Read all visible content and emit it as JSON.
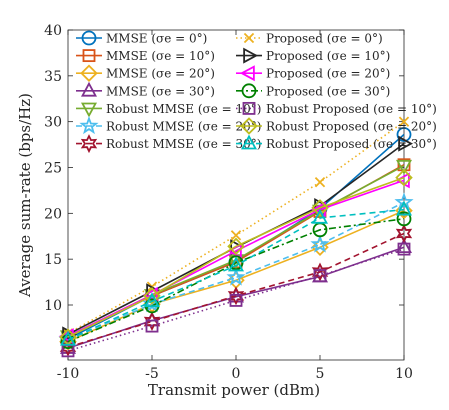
{
  "chart_data": {
    "type": "line",
    "title": "",
    "xlabel": "Transmit power (dBm)",
    "ylabel": "Average sum-rate (bps/Hz)",
    "x": [
      -10,
      -5,
      0,
      5,
      10
    ],
    "xlim": [
      -10,
      10
    ],
    "ylim": [
      4,
      40
    ],
    "xticks": [
      -10,
      -5,
      0,
      5,
      10
    ],
    "yticks": [
      10,
      15,
      20,
      25,
      30,
      35,
      40
    ],
    "grid": false,
    "legend_position": "top-left, two columns",
    "series": [
      {
        "name": "MMSE (σe = 0°)",
        "color": "#0072BD",
        "linestyle": "solid",
        "marker": "circle",
        "values": [
          6.3,
          11.0,
          14.7,
          20.5,
          28.6
        ]
      },
      {
        "name": "MMSE (σe = 10°)",
        "color": "#D95319",
        "linestyle": "solid",
        "marker": "square",
        "values": [
          6.5,
          11.0,
          14.7,
          20.2,
          25.3
        ]
      },
      {
        "name": "MMSE (σe = 20°)",
        "color": "#EDB120",
        "linestyle": "solid",
        "marker": "diamond",
        "values": [
          6.0,
          10.1,
          12.7,
          16.3,
          20.3
        ]
      },
      {
        "name": "MMSE (σe = 30°)",
        "color": "#7E2F8E",
        "linestyle": "solid",
        "marker": "triangle-up",
        "values": [
          5.3,
          8.3,
          10.9,
          13.1,
          16.3
        ]
      },
      {
        "name": "Robust MMSE (σe = 10°)",
        "color": "#77AC30",
        "linestyle": "solid",
        "marker": "triangle-down",
        "values": [
          6.6,
          11.1,
          14.9,
          20.3,
          25.2
        ]
      },
      {
        "name": "Robust MMSE (σe = 20°)",
        "color": "#4DBEEE",
        "linestyle": "dashed",
        "marker": "pentagram",
        "values": [
          6.2,
          10.1,
          13.0,
          16.6,
          21.2
        ]
      },
      {
        "name": "Robust MMSE (σe = 30°)",
        "color": "#A2142F",
        "linestyle": "dashed",
        "marker": "hexagram",
        "values": [
          5.4,
          8.2,
          11.0,
          13.6,
          17.8
        ]
      },
      {
        "name": "Proposed (σe = 0°)",
        "color": "#EDB120",
        "linestyle": "dotted",
        "marker": "x",
        "values": [
          6.9,
          12.0,
          17.6,
          23.4,
          30.0
        ]
      },
      {
        "name": "Proposed (σe = 10°)",
        "color": "#262626",
        "linestyle": "solid",
        "marker": "triangle-right",
        "values": [
          6.8,
          11.5,
          16.3,
          20.8,
          27.6
        ]
      },
      {
        "name": "Proposed (σe = 20°)",
        "color": "#FF00FF",
        "linestyle": "solid",
        "marker": "triangle-left",
        "values": [
          6.6,
          11.1,
          15.9,
          20.4,
          23.6
        ]
      },
      {
        "name": "Proposed (σe = 30°)",
        "color": "#008000",
        "linestyle": "dashdot",
        "marker": "circle",
        "values": [
          6.0,
          9.9,
          14.6,
          18.2,
          19.4
        ]
      },
      {
        "name": "Robust Proposed (σe = 10°)",
        "color": "#7E2F8E",
        "linestyle": "dotted",
        "marker": "square",
        "values": [
          5.0,
          7.7,
          10.5,
          13.2,
          16.1
        ]
      },
      {
        "name": "Robust Proposed (σe = 20°)",
        "color": "#BDBD1E",
        "linestyle": "solid",
        "marker": "diamond",
        "values": [
          6.5,
          11.0,
          16.4,
          20.6,
          23.9
        ]
      },
      {
        "name": "Robust Proposed (σe = 30°)",
        "color": "#00BFBF",
        "linestyle": "dashed",
        "marker": "triangle-up",
        "values": [
          6.2,
          10.4,
          14.3,
          19.5,
          20.4
        ]
      }
    ]
  }
}
